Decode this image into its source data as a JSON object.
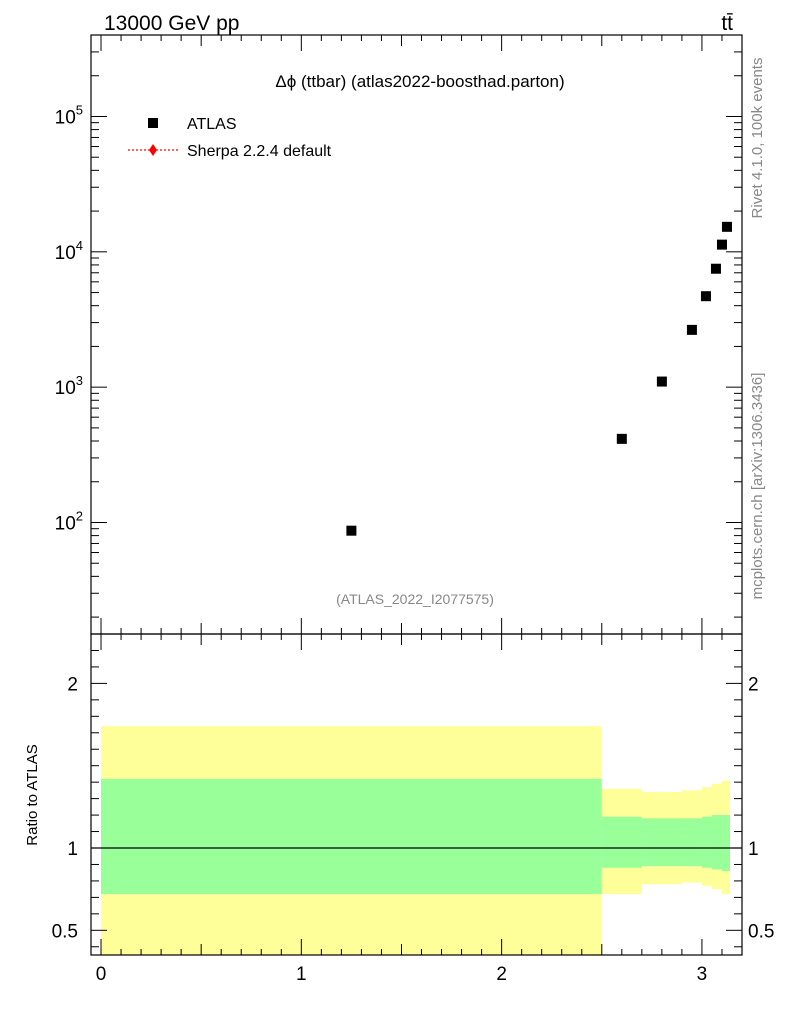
{
  "header": {
    "left": "13000 GeV pp",
    "right": "tt̄"
  },
  "side_text": {
    "rivet": "Rivet 4.1.0,  100k events",
    "mcplots": "mcplots.cern.ch [arXiv:1306.3436]"
  },
  "colors": {
    "data": "#000000",
    "mc": "#ff0000",
    "band_outer": "#ffff99",
    "band_inner": "#99ff99"
  },
  "chart_data": [
    {
      "type": "scatter",
      "title": "Δϕ (ttbar) (atlas2022-boosthad.parton)",
      "watermark": "(ATLAS_2022_I2077575)",
      "yscale": "log",
      "xlim": [
        -0.05,
        3.2
      ],
      "ylim": [
        15,
        400000
      ],
      "yticks": [
        {
          "value": 100,
          "base": "10",
          "exp": "2"
        },
        {
          "value": 1000,
          "base": "10",
          "exp": "3"
        },
        {
          "value": 10000,
          "base": "10",
          "exp": "4"
        },
        {
          "value": 100000,
          "base": "10",
          "exp": "5"
        }
      ],
      "legend": [
        {
          "label": "ATLAS",
          "marker": "square"
        },
        {
          "label": "Sherpa 2.2.4 default",
          "marker": "diamond"
        }
      ],
      "series": [
        {
          "name": "ATLAS",
          "x": [
            1.25,
            2.6,
            2.8,
            2.95,
            3.02,
            3.07,
            3.1,
            3.125
          ],
          "y": [
            87,
            415,
            1100,
            2650,
            4700,
            7500,
            11300,
            15300
          ]
        }
      ]
    },
    {
      "type": "area",
      "ylabel": "Ratio to ATLAS",
      "xlim": [
        -0.05,
        3.2
      ],
      "ylim": [
        0.35,
        2.3
      ],
      "xticks": [
        {
          "value": 0,
          "label": "0"
        },
        {
          "value": 1,
          "label": "1"
        },
        {
          "value": 2,
          "label": "2"
        },
        {
          "value": 3,
          "label": "3"
        }
      ],
      "yticks": [
        {
          "value": 0.5,
          "label": "0.5"
        },
        {
          "value": 1,
          "label": "1"
        },
        {
          "value": 2,
          "label": "2"
        }
      ],
      "bands": [
        {
          "name": "total uncertainty",
          "edges": [
            0,
            2.5,
            2.7,
            2.9,
            3.0,
            3.05,
            3.1,
            3.14
          ],
          "lo": [
            0.0,
            0.72,
            0.78,
            0.79,
            0.77,
            0.75,
            0.72
          ],
          "hi": [
            1.74,
            1.36,
            1.34,
            1.35,
            1.37,
            1.39,
            1.41
          ]
        },
        {
          "name": "statistical uncertainty",
          "edges": [
            0,
            2.5,
            2.7,
            2.9,
            3.0,
            3.05,
            3.1,
            3.14
          ],
          "lo": [
            0.72,
            0.88,
            0.89,
            0.89,
            0.88,
            0.87,
            0.86
          ],
          "hi": [
            1.42,
            1.19,
            1.18,
            1.18,
            1.19,
            1.2,
            1.2
          ]
        }
      ]
    }
  ]
}
